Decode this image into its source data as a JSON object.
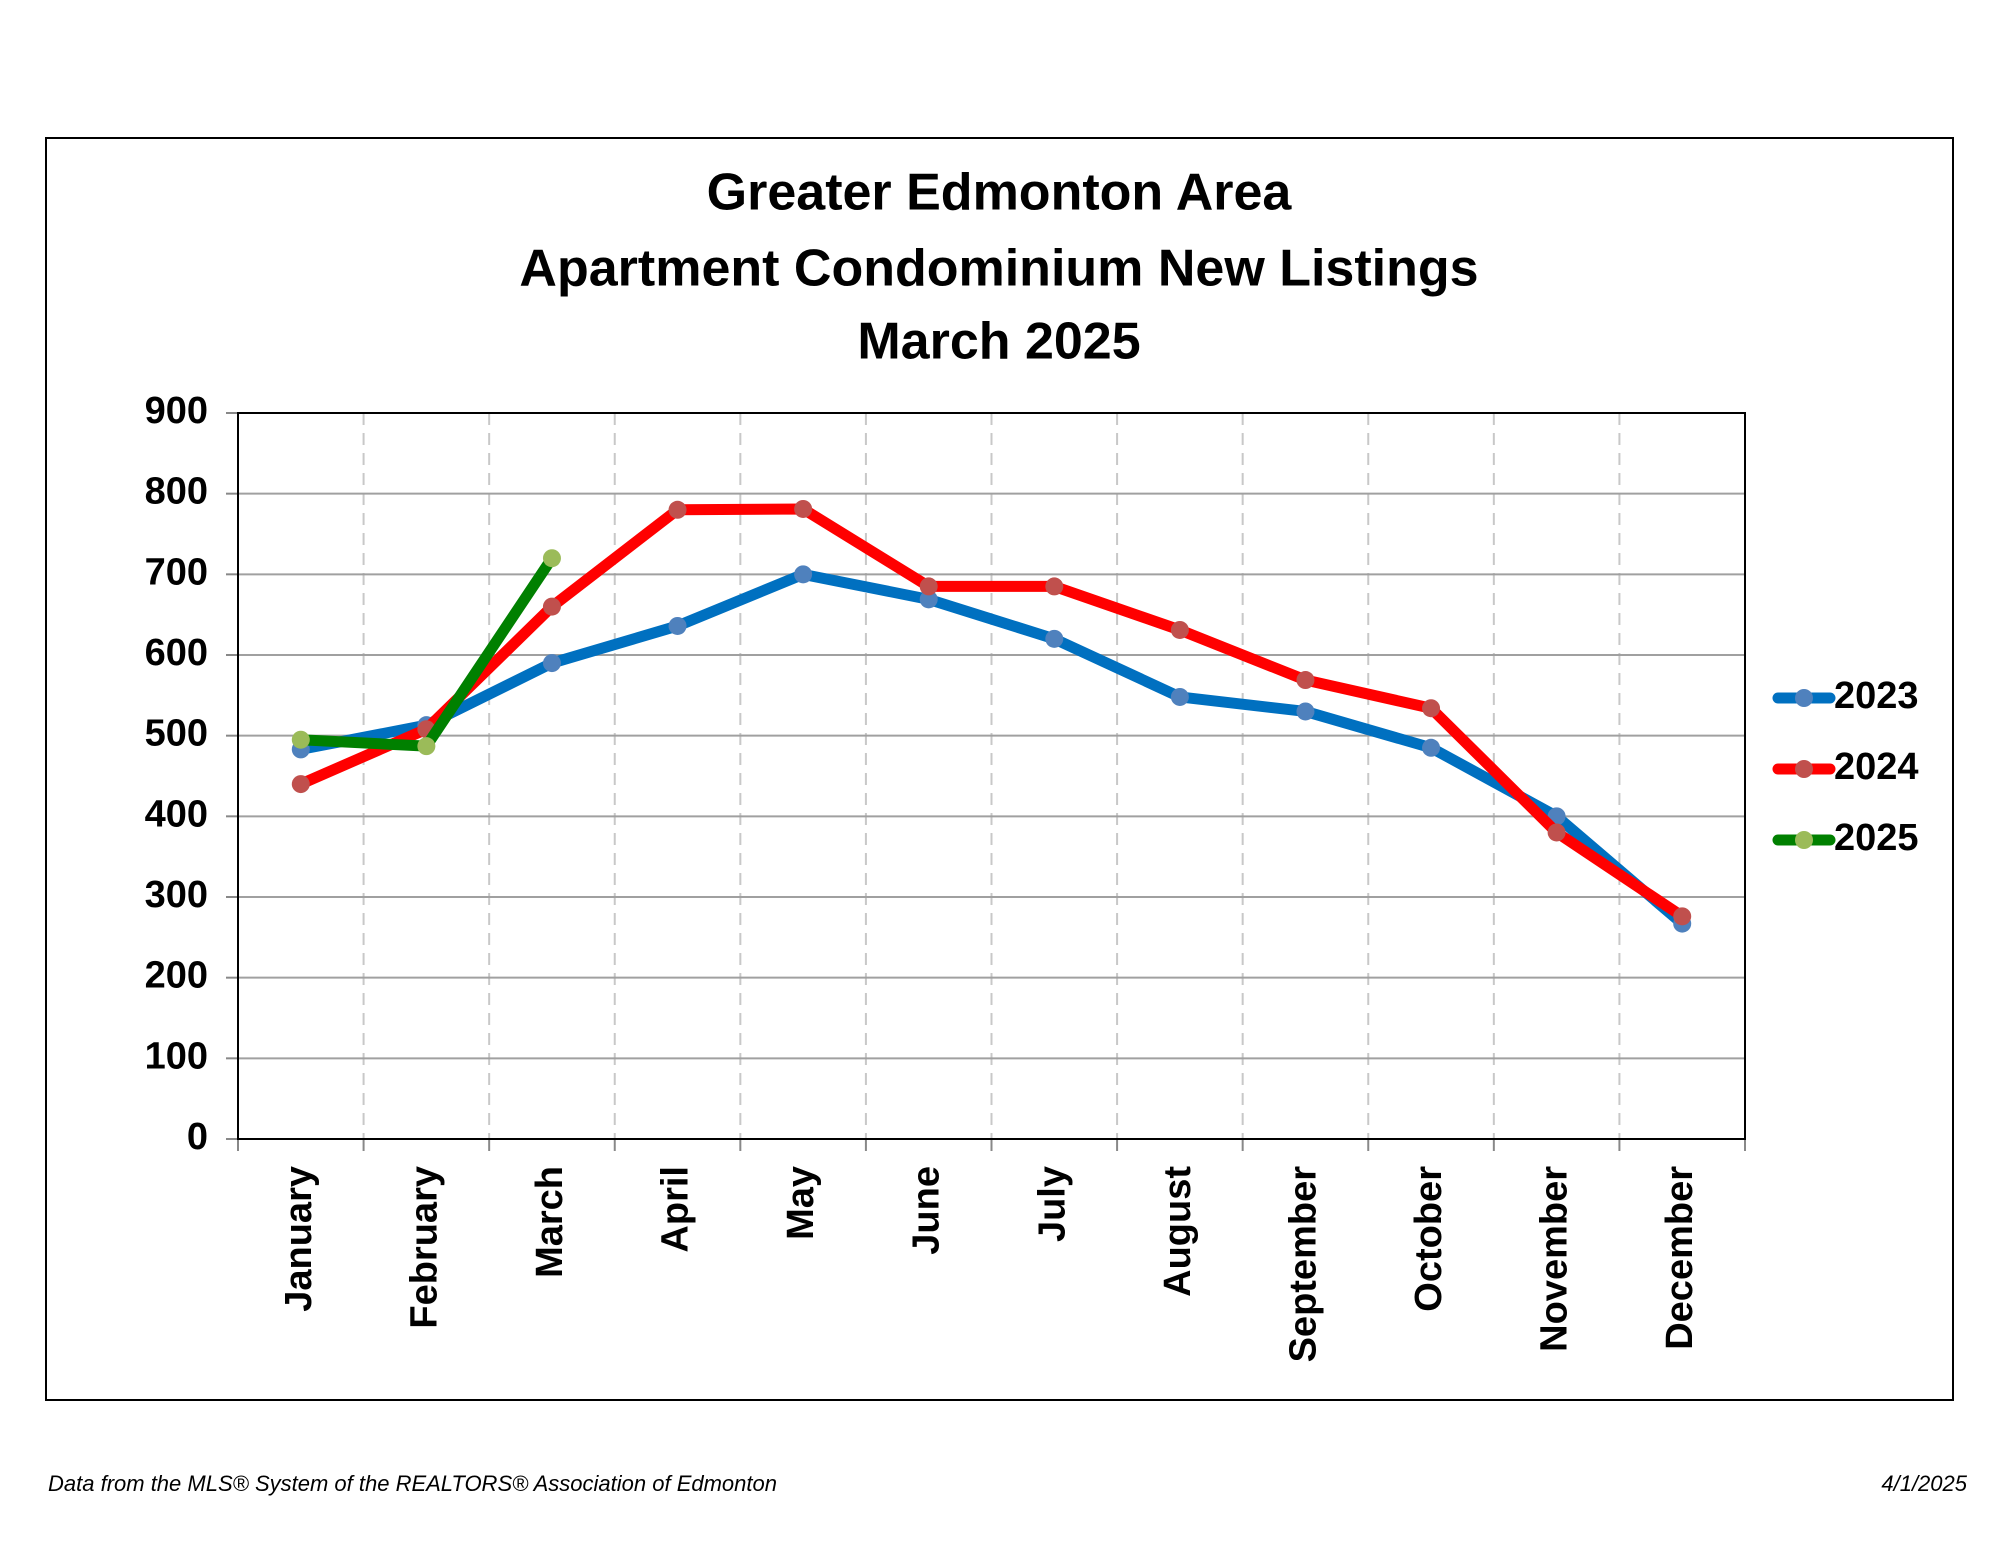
{
  "chart_data": {
    "type": "line",
    "title": [
      "Greater Edmonton Area",
      "Apartment Condominium New Listings",
      "March 2025"
    ],
    "categories": [
      "January",
      "February",
      "March",
      "April",
      "May",
      "June",
      "July",
      "August",
      "September",
      "October",
      "November",
      "December"
    ],
    "series": [
      {
        "name": "2023",
        "color": "#0070c0",
        "marker_color": "#4f81bd",
        "values": [
          483,
          513,
          590,
          636,
          700,
          669,
          620,
          548,
          530,
          485,
          400,
          267
        ]
      },
      {
        "name": "2024",
        "color": "#ff0000",
        "marker_color": "#c0504d",
        "values": [
          440,
          508,
          660,
          780,
          781,
          685,
          685,
          631,
          569,
          534,
          380,
          276
        ]
      },
      {
        "name": "2025",
        "color": "#008000",
        "marker_color": "#9bbb59",
        "values": [
          495,
          487,
          720,
          null,
          null,
          null,
          null,
          null,
          null,
          null,
          null,
          null
        ]
      }
    ],
    "ylim": [
      0,
      900
    ],
    "yticks": [
      0,
      100,
      200,
      300,
      400,
      500,
      600,
      700,
      800,
      900
    ],
    "grid": true,
    "legend": "right",
    "source": "Data from the MLS® System of the REALTORS® Association of Edmonton",
    "date": "4/1/2025"
  }
}
